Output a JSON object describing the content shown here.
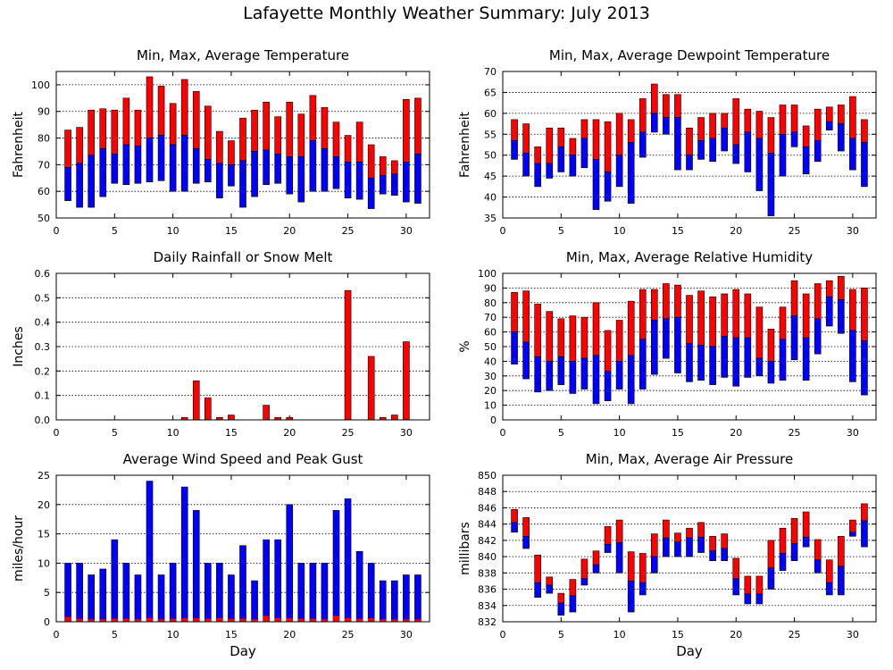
{
  "page": {
    "title": "Lafayette Monthly Weather Summary: July 2013"
  },
  "colors": {
    "upper": "#ff0000",
    "lower": "#0000ff",
    "grid": "#000000"
  },
  "chart_data": [
    {
      "id": "temperature",
      "type": "bar",
      "title": "Min, Max, Average Temperature",
      "xlabel": "",
      "ylabel": "Fahrenheit",
      "xlim": [
        0,
        32
      ],
      "ylim": [
        50,
        105
      ],
      "xticks": [
        0,
        5,
        10,
        15,
        20,
        25,
        30
      ],
      "yticks": [
        50,
        60,
        70,
        80,
        90,
        100
      ],
      "grid": true,
      "x": [
        1,
        2,
        3,
        4,
        5,
        6,
        7,
        8,
        9,
        10,
        11,
        12,
        13,
        14,
        15,
        16,
        17,
        18,
        19,
        20,
        21,
        22,
        23,
        24,
        25,
        26,
        27,
        28,
        29,
        30,
        31
      ],
      "series": [
        {
          "name": "",
          "key": "min",
          "values": [
            56.5,
            54,
            54,
            58,
            63,
            62.5,
            63,
            63.5,
            64,
            60,
            60,
            63,
            63.5,
            57.5,
            62,
            54,
            58,
            62.5,
            63,
            59,
            56,
            60,
            60,
            61,
            57.5,
            57,
            53.5,
            59,
            58.5,
            56,
            55.5
          ]
        },
        {
          "name": "",
          "key": "avg",
          "values": [
            69,
            70.5,
            73.5,
            76,
            74,
            77.5,
            77,
            80,
            81,
            77.5,
            81,
            76,
            72,
            70.5,
            70,
            71.5,
            75,
            75.5,
            74,
            73,
            73,
            79,
            76,
            73,
            71,
            71,
            65,
            66,
            66.5,
            71,
            74
          ]
        },
        {
          "name": "",
          "key": "max",
          "values": [
            83,
            84,
            90.5,
            91,
            90.5,
            95,
            90.5,
            103,
            99.5,
            93,
            102,
            97.5,
            92,
            82.5,
            79,
            87.5,
            90.5,
            93.5,
            88,
            93.5,
            89,
            96,
            91.5,
            86,
            81,
            86,
            77.5,
            73,
            71.5,
            94.5,
            95
          ]
        }
      ]
    },
    {
      "id": "dewpoint",
      "type": "bar",
      "title": "Min, Max, Average Dewpoint Temperature",
      "xlabel": "",
      "ylabel": "Fahrenheit",
      "xlim": [
        0,
        32
      ],
      "ylim": [
        35,
        70
      ],
      "xticks": [
        0,
        5,
        10,
        15,
        20,
        25,
        30
      ],
      "yticks": [
        35,
        40,
        45,
        50,
        55,
        60,
        65,
        70
      ],
      "grid": true,
      "x": [
        1,
        2,
        3,
        4,
        5,
        6,
        7,
        8,
        9,
        10,
        11,
        12,
        13,
        14,
        15,
        16,
        17,
        18,
        19,
        20,
        21,
        22,
        23,
        24,
        25,
        26,
        27,
        28,
        29,
        30,
        31
      ],
      "series": [
        {
          "name": "",
          "key": "min",
          "values": [
            49,
            45,
            42.5,
            44.5,
            46,
            45,
            47,
            37,
            39,
            42.5,
            38.5,
            49.5,
            55.5,
            55,
            46.5,
            46.5,
            49,
            48.5,
            51,
            48,
            46,
            41.5,
            35.5,
            45,
            52,
            45.5,
            48.5,
            56,
            51,
            46.5,
            42.5
          ]
        },
        {
          "name": "",
          "key": "avg",
          "values": [
            53.5,
            50.5,
            48,
            48,
            52,
            50,
            54,
            49,
            46,
            50,
            53,
            55.5,
            60,
            59,
            59,
            50,
            53.5,
            54,
            56.5,
            52.5,
            55.5,
            54,
            50.5,
            55,
            55.5,
            52,
            53.5,
            58,
            57.5,
            54,
            53
          ]
        },
        {
          "name": "",
          "key": "max",
          "values": [
            58.5,
            57.5,
            52,
            56.5,
            56.5,
            54,
            58.5,
            58.5,
            58,
            60,
            58.5,
            63.5,
            67,
            64.5,
            64.5,
            56.5,
            59,
            60,
            60,
            63.5,
            61,
            60.5,
            59,
            62,
            62,
            57,
            61,
            61.5,
            62,
            64,
            58.5
          ]
        }
      ]
    },
    {
      "id": "rainfall",
      "type": "bar",
      "title": "Daily Rainfall or Snow Melt",
      "xlabel": "",
      "ylabel": "Inches",
      "xlim": [
        0,
        32
      ],
      "ylim": [
        0,
        0.6
      ],
      "xticks": [
        0,
        5,
        10,
        15,
        20,
        25,
        30
      ],
      "yticks": [
        0.0,
        0.1,
        0.2,
        0.3,
        0.4,
        0.5,
        0.6
      ],
      "ytick_labels": [
        "0.0",
        "0.1",
        "0.2",
        "0.3",
        "0.4",
        "0.5",
        "0.6"
      ],
      "grid": true,
      "x": [
        1,
        2,
        3,
        4,
        5,
        6,
        7,
        8,
        9,
        10,
        11,
        12,
        13,
        14,
        15,
        16,
        17,
        18,
        19,
        20,
        21,
        22,
        23,
        24,
        25,
        26,
        27,
        28,
        29,
        30,
        31
      ],
      "series": [
        {
          "name": "",
          "key": "rain",
          "values": [
            0,
            0,
            0,
            0,
            0,
            0,
            0,
            0,
            0,
            0,
            0.01,
            0.16,
            0.09,
            0.01,
            0.02,
            0,
            0,
            0.06,
            0.01,
            0.01,
            0,
            0,
            0,
            0,
            0.53,
            0,
            0.26,
            0.01,
            0.02,
            0.32,
            0
          ]
        }
      ]
    },
    {
      "id": "humidity",
      "type": "bar",
      "title": "Min, Max, Average Relative Humidity",
      "xlabel": "",
      "ylabel": "%",
      "xlim": [
        0,
        32
      ],
      "ylim": [
        0,
        100
      ],
      "xticks": [
        0,
        5,
        10,
        15,
        20,
        25,
        30
      ],
      "yticks": [
        0,
        10,
        20,
        30,
        40,
        50,
        60,
        70,
        80,
        90,
        100
      ],
      "grid": true,
      "x": [
        1,
        2,
        3,
        4,
        5,
        6,
        7,
        8,
        9,
        10,
        11,
        12,
        13,
        14,
        15,
        16,
        17,
        18,
        19,
        20,
        21,
        22,
        23,
        24,
        25,
        26,
        27,
        28,
        29,
        30,
        31
      ],
      "series": [
        {
          "name": "",
          "key": "min",
          "values": [
            38,
            28,
            19,
            20,
            24,
            18,
            21,
            11,
            13,
            21,
            11,
            21,
            31,
            42,
            32,
            26,
            27,
            24,
            29,
            23,
            29,
            30,
            25,
            27,
            41,
            27,
            45,
            64,
            59,
            26,
            17
          ]
        },
        {
          "name": "",
          "key": "avg",
          "values": [
            60,
            53,
            43,
            40,
            43,
            40,
            42,
            44,
            33,
            40,
            44,
            55,
            68,
            69,
            70,
            52,
            51,
            50,
            57,
            56,
            56,
            42,
            40,
            55,
            71,
            56,
            69,
            84,
            82,
            61,
            54
          ]
        },
        {
          "name": "",
          "key": "max",
          "values": [
            87,
            88,
            79,
            74,
            69,
            71,
            70,
            80,
            61,
            68,
            81,
            89,
            89,
            93,
            92,
            85,
            88,
            84,
            86,
            89,
            86,
            77,
            62,
            77,
            95,
            86,
            93,
            95,
            98,
            89,
            90
          ]
        }
      ]
    },
    {
      "id": "wind",
      "type": "bar",
      "title": "Average Wind Speed and Peak Gust",
      "xlabel": "Day",
      "ylabel": "miles/hour",
      "xlim": [
        0,
        32
      ],
      "ylim": [
        0,
        25
      ],
      "xticks": [
        0,
        5,
        10,
        15,
        20,
        25,
        30
      ],
      "yticks": [
        0,
        5,
        10,
        15,
        20,
        25
      ],
      "grid": true,
      "x": [
        1,
        2,
        3,
        4,
        5,
        6,
        7,
        8,
        9,
        10,
        11,
        12,
        13,
        14,
        15,
        16,
        17,
        18,
        19,
        20,
        21,
        22,
        23,
        24,
        25,
        26,
        27,
        28,
        29,
        30,
        31
      ],
      "series": [
        {
          "name": "",
          "key": "avg",
          "values": [
            0.8,
            0.5,
            0.4,
            0.4,
            0.5,
            0.5,
            0.4,
            0.6,
            0.4,
            0.5,
            0.6,
            0.6,
            0.5,
            0.6,
            0.5,
            0.5,
            0.4,
            1,
            0.6,
            0.6,
            0.5,
            0.5,
            0.4,
            1,
            0.6,
            0.5,
            0.6,
            0.4,
            0.4,
            0.4,
            0.4
          ]
        },
        {
          "name": "",
          "key": "gust",
          "values": [
            10,
            10,
            8,
            9,
            14,
            10,
            8,
            24,
            8,
            10,
            23,
            19,
            10,
            10,
            8,
            13,
            7,
            14,
            14,
            20,
            10,
            10,
            10,
            19,
            21,
            12,
            10,
            7,
            7,
            8,
            8
          ]
        }
      ]
    },
    {
      "id": "pressure",
      "type": "bar",
      "title": "Min, Max, Average Air Pressure",
      "xlabel": "Day",
      "ylabel": "millibars",
      "xlim": [
        0,
        32
      ],
      "ylim": [
        832,
        850
      ],
      "xticks": [
        0,
        5,
        10,
        15,
        20,
        25,
        30
      ],
      "yticks": [
        832,
        834,
        836,
        838,
        840,
        842,
        844,
        846,
        848,
        850
      ],
      "grid": true,
      "x": [
        1,
        2,
        3,
        4,
        5,
        6,
        7,
        8,
        9,
        10,
        11,
        12,
        13,
        14,
        15,
        16,
        17,
        18,
        19,
        20,
        21,
        22,
        23,
        24,
        25,
        26,
        27,
        28,
        29,
        30,
        31
      ],
      "series": [
        {
          "name": "",
          "key": "min",
          "values": [
            843,
            841,
            835,
            835.5,
            832.8,
            833.2,
            836.5,
            838,
            840.5,
            838,
            833.2,
            835.3,
            838,
            840,
            840,
            840,
            840.5,
            839.5,
            839.5,
            835.3,
            834.2,
            834.2,
            836,
            838.3,
            839.5,
            841.2,
            838,
            835.3,
            835.3,
            842.5,
            841.2
          ]
        },
        {
          "name": "",
          "key": "avg",
          "values": [
            844.2,
            842.5,
            836.8,
            836.5,
            834.3,
            835.2,
            837.3,
            839,
            841.5,
            841.7,
            837,
            836.8,
            840,
            842.3,
            841.8,
            842.3,
            842.4,
            840.7,
            841,
            837.3,
            835.4,
            835.4,
            838.6,
            840.4,
            841.6,
            842.4,
            839.6,
            836.8,
            838.8,
            843,
            844.4
          ]
        },
        {
          "name": "",
          "key": "max",
          "values": [
            845.8,
            844.8,
            840.2,
            837.5,
            835.5,
            837.2,
            839.7,
            840.7,
            843.7,
            844.5,
            840.6,
            840.4,
            842.8,
            844.5,
            842.9,
            843.5,
            844.2,
            842.5,
            842.8,
            839.8,
            837.6,
            837.6,
            842,
            843.5,
            844.7,
            845.5,
            842.1,
            839.6,
            842.5,
            844.5,
            846.5
          ]
        }
      ]
    }
  ]
}
